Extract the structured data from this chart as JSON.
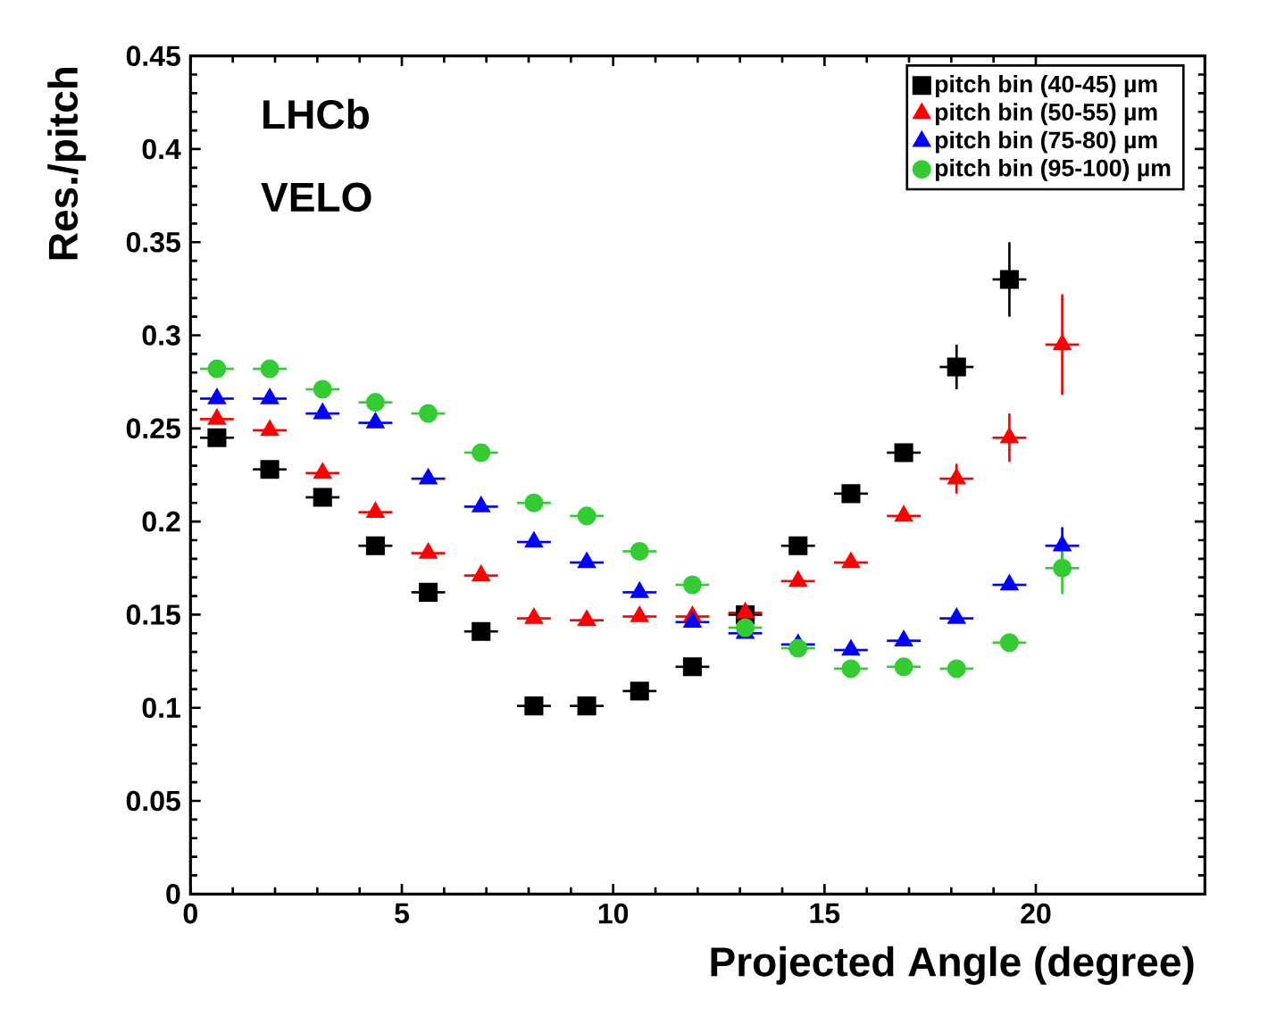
{
  "chart_data": {
    "type": "scatter",
    "xlabel": "Projected Angle (degree)",
    "ylabel": "Res./pitch",
    "annotations": [
      "LHCb",
      "VELO"
    ],
    "x": [
      0.625,
      1.875,
      3.125,
      4.375,
      5.625,
      6.875,
      8.125,
      9.375,
      10.625,
      11.875,
      13.125,
      14.375,
      15.625,
      16.875,
      18.125,
      19.375,
      20.625
    ],
    "series": [
      {
        "name": "pitch bin (40-45) µm",
        "color": "#000000",
        "marker": "square",
        "values": [
          0.245,
          0.228,
          0.213,
          0.187,
          0.162,
          0.141,
          0.101,
          0.101,
          0.109,
          0.122,
          0.15,
          0.187,
          0.215,
          0.237,
          0.283,
          0.33,
          null
        ],
        "errors": [
          null,
          null,
          null,
          null,
          null,
          null,
          null,
          null,
          null,
          null,
          null,
          null,
          null,
          null,
          0.012,
          0.02,
          null
        ],
        "xerrors": [
          0.4,
          0.4,
          0.4,
          0.4,
          0.4,
          0.4,
          0.4,
          0.4,
          0.4,
          0.4,
          0.4,
          0.4,
          0.4,
          0.4,
          0.4,
          0.4,
          null
        ]
      },
      {
        "name": "pitch bin (50-55) µm",
        "color": "#ff0000",
        "marker": "triangle",
        "values": [
          0.255,
          0.249,
          0.226,
          0.205,
          0.183,
          0.171,
          0.148,
          0.147,
          0.149,
          0.149,
          0.151,
          0.168,
          0.178,
          0.203,
          0.223,
          0.245,
          0.295
        ],
        "errors": [
          null,
          null,
          null,
          null,
          null,
          null,
          null,
          null,
          null,
          null,
          null,
          null,
          null,
          null,
          0.008,
          0.013,
          0.027
        ],
        "xerrors": [
          0.4,
          0.4,
          0.4,
          0.4,
          0.4,
          0.4,
          0.4,
          0.4,
          0.4,
          0.4,
          0.4,
          0.4,
          0.4,
          0.4,
          0.4,
          0.4,
          0.4
        ]
      },
      {
        "name": "pitch bin (75-80) µm",
        "color": "#0000ff",
        "marker": "triangle",
        "values": [
          0.266,
          0.266,
          0.258,
          0.253,
          0.223,
          0.208,
          0.189,
          0.178,
          0.162,
          0.146,
          0.14,
          0.134,
          0.131,
          0.136,
          0.148,
          0.166,
          0.187
        ],
        "errors": [
          null,
          null,
          null,
          null,
          null,
          null,
          null,
          null,
          null,
          null,
          null,
          null,
          null,
          null,
          null,
          null,
          0.01
        ],
        "xerrors": [
          0.4,
          0.4,
          0.4,
          0.4,
          0.4,
          0.4,
          0.4,
          0.4,
          0.4,
          0.4,
          0.4,
          0.4,
          0.4,
          0.4,
          0.4,
          0.4,
          0.4
        ]
      },
      {
        "name": "pitch bin (95-100) µm",
        "color": "#33cc33",
        "marker": "circle",
        "values": [
          0.282,
          0.282,
          0.271,
          0.264,
          0.258,
          0.237,
          0.21,
          0.203,
          0.184,
          0.166,
          0.143,
          0.132,
          0.121,
          0.122,
          0.121,
          0.135,
          0.175
        ],
        "errors": [
          null,
          null,
          null,
          null,
          null,
          null,
          null,
          null,
          null,
          null,
          null,
          null,
          null,
          null,
          null,
          null,
          0.014
        ],
        "xerrors": [
          0.4,
          0.4,
          0.4,
          0.4,
          0.4,
          0.4,
          0.4,
          0.4,
          0.4,
          0.4,
          0.4,
          0.4,
          0.4,
          0.4,
          0.4,
          0.4,
          0.4
        ]
      }
    ],
    "xlim": [
      0,
      24
    ],
    "ylim": [
      0,
      0.45
    ],
    "xticks": [
      0,
      5,
      10,
      15,
      20
    ],
    "yticks": [
      0,
      0.05,
      0.1,
      0.15,
      0.2,
      0.25,
      0.3,
      0.35,
      0.4,
      0.45
    ],
    "legend": "top right",
    "grid": false
  }
}
